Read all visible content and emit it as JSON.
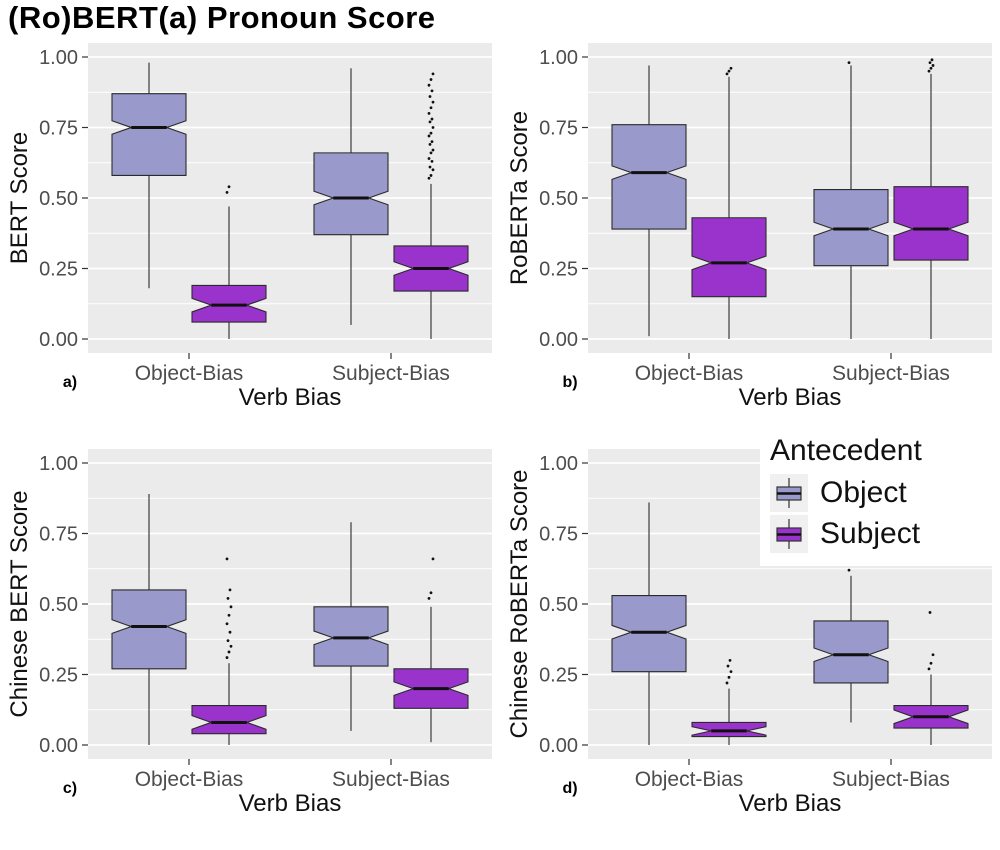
{
  "title": "(Ro)BERT(a) Pronoun Score",
  "colors": {
    "object": "#9999CC",
    "subject": "#9933CC",
    "panel_bg": "#EBEBEB",
    "grid": "#FFFFFF",
    "axis_text": "#4D4D4D",
    "box_stroke": "#2B2B2B"
  },
  "legend": {
    "title": "Antecedent",
    "items": [
      {
        "label": "Object",
        "color": "#9999CC"
      },
      {
        "label": "Subject",
        "color": "#9933CC"
      }
    ]
  },
  "chart_data": [
    {
      "type": "boxplot",
      "id": "a",
      "panel_label": "a)",
      "ylabel": "BERT Score",
      "xlabel": "Verb Bias",
      "ylim": [
        0,
        1
      ],
      "y_ticks": [
        "0.00",
        "0.25",
        "0.50",
        "0.75",
        "1.00"
      ],
      "categories": [
        "Object-Bias",
        "Subject-Bias"
      ],
      "series": [
        {
          "name": "Object",
          "color": "#9999CC",
          "boxes": [
            {
              "whislo": 0.18,
              "q1": 0.58,
              "med": 0.75,
              "q3": 0.87,
              "whishi": 0.98,
              "outliers": []
            },
            {
              "whislo": 0.05,
              "q1": 0.37,
              "med": 0.5,
              "q3": 0.66,
              "whishi": 0.96,
              "outliers": []
            }
          ]
        },
        {
          "name": "Subject",
          "color": "#9933CC",
          "boxes": [
            {
              "whislo": 0.0,
              "q1": 0.06,
              "med": 0.12,
              "q3": 0.19,
              "whishi": 0.47,
              "outliers": [
                0.52,
                0.54
              ]
            },
            {
              "whislo": 0.0,
              "q1": 0.17,
              "med": 0.25,
              "q3": 0.33,
              "whishi": 0.55,
              "outliers": [
                0.57,
                0.58,
                0.6,
                0.61,
                0.63,
                0.64,
                0.66,
                0.67,
                0.69,
                0.7,
                0.72,
                0.73,
                0.75,
                0.77,
                0.78,
                0.8,
                0.82,
                0.84,
                0.86,
                0.88,
                0.9,
                0.92,
                0.94
              ]
            }
          ]
        }
      ]
    },
    {
      "type": "boxplot",
      "id": "b",
      "panel_label": "b)",
      "ylabel": "RoBERTa Score",
      "xlabel": "Verb Bias",
      "ylim": [
        0,
        1
      ],
      "y_ticks": [
        "0.00",
        "0.25",
        "0.50",
        "0.75",
        "1.00"
      ],
      "categories": [
        "Object-Bias",
        "Subject-Bias"
      ],
      "series": [
        {
          "name": "Object",
          "color": "#9999CC",
          "boxes": [
            {
              "whislo": 0.01,
              "q1": 0.39,
              "med": 0.59,
              "q3": 0.76,
              "whishi": 0.97,
              "outliers": []
            },
            {
              "whislo": 0.0,
              "q1": 0.26,
              "med": 0.39,
              "q3": 0.53,
              "whishi": 0.97,
              "outliers": [
                0.98
              ]
            }
          ]
        },
        {
          "name": "Subject",
          "color": "#9933CC",
          "boxes": [
            {
              "whislo": 0.0,
              "q1": 0.15,
              "med": 0.27,
              "q3": 0.43,
              "whishi": 0.93,
              "outliers": [
                0.94,
                0.95,
                0.96
              ]
            },
            {
              "whislo": 0.0,
              "q1": 0.28,
              "med": 0.39,
              "q3": 0.54,
              "whishi": 0.94,
              "outliers": [
                0.95,
                0.96,
                0.97,
                0.98,
                0.99
              ]
            }
          ]
        }
      ]
    },
    {
      "type": "boxplot",
      "id": "c",
      "panel_label": "c)",
      "ylabel": "Chinese BERT Score",
      "xlabel": "Verb Bias",
      "ylim": [
        0,
        1
      ],
      "y_ticks": [
        "0.00",
        "0.25",
        "0.50",
        "0.75",
        "1.00"
      ],
      "categories": [
        "Object-Bias",
        "Subject-Bias"
      ],
      "series": [
        {
          "name": "Object",
          "color": "#9999CC",
          "boxes": [
            {
              "whislo": 0.0,
              "q1": 0.27,
              "med": 0.42,
              "q3": 0.55,
              "whishi": 0.89,
              "outliers": []
            },
            {
              "whislo": 0.05,
              "q1": 0.28,
              "med": 0.38,
              "q3": 0.49,
              "whishi": 0.79,
              "outliers": []
            }
          ]
        },
        {
          "name": "Subject",
          "color": "#9933CC",
          "boxes": [
            {
              "whislo": 0.0,
              "q1": 0.04,
              "med": 0.08,
              "q3": 0.14,
              "whishi": 0.29,
              "outliers": [
                0.31,
                0.33,
                0.35,
                0.37,
                0.4,
                0.43,
                0.46,
                0.49,
                0.52,
                0.55,
                0.66
              ]
            },
            {
              "whislo": 0.01,
              "q1": 0.13,
              "med": 0.2,
              "q3": 0.27,
              "whishi": 0.49,
              "outliers": [
                0.52,
                0.54,
                0.66
              ]
            }
          ]
        }
      ]
    },
    {
      "type": "boxplot",
      "id": "d",
      "panel_label": "d)",
      "ylabel": "Chinese RoBERTa Score",
      "xlabel": "Verb Bias",
      "ylim": [
        0,
        1
      ],
      "y_ticks": [
        "0.00",
        "0.25",
        "0.50",
        "0.75",
        "1.00"
      ],
      "categories": [
        "Object-Bias",
        "Subject-Bias"
      ],
      "series": [
        {
          "name": "Object",
          "color": "#9999CC",
          "boxes": [
            {
              "whislo": 0.0,
              "q1": 0.26,
              "med": 0.4,
              "q3": 0.53,
              "whishi": 0.86,
              "outliers": []
            },
            {
              "whislo": 0.08,
              "q1": 0.22,
              "med": 0.32,
              "q3": 0.44,
              "whishi": 0.6,
              "outliers": [
                0.62,
                0.65
              ]
            }
          ]
        },
        {
          "name": "Subject",
          "color": "#9933CC",
          "boxes": [
            {
              "whislo": 0.0,
              "q1": 0.03,
              "med": 0.05,
              "q3": 0.08,
              "whishi": 0.2,
              "outliers": [
                0.22,
                0.24,
                0.26,
                0.28,
                0.3
              ]
            },
            {
              "whislo": 0.0,
              "q1": 0.06,
              "med": 0.1,
              "q3": 0.14,
              "whishi": 0.25,
              "outliers": [
                0.27,
                0.29,
                0.32,
                0.47
              ]
            }
          ]
        }
      ]
    }
  ]
}
